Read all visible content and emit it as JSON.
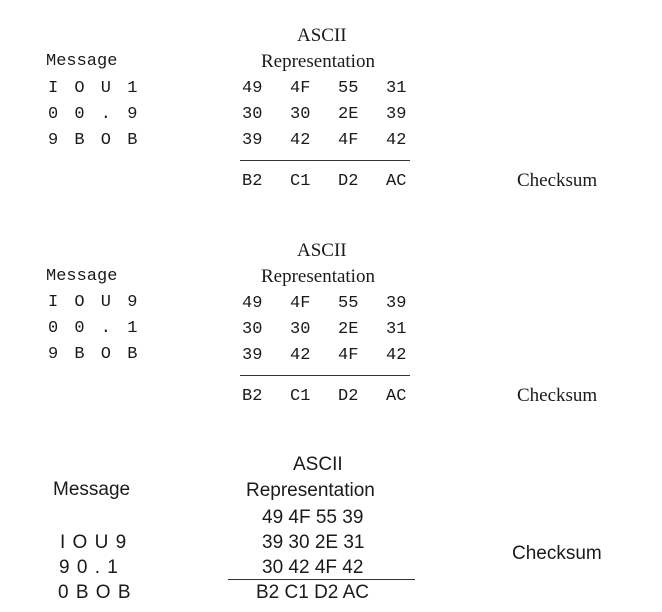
{
  "blocks": [
    {
      "header_ascii": "ASCII",
      "header_repr": "Representation",
      "message_label": "Message",
      "message_lines": [
        "I O U 1",
        "0 0 . 9",
        "9 B O B"
      ],
      "hex_rows": [
        [
          "49",
          "4F",
          "55",
          "31"
        ],
        [
          "30",
          "30",
          "2E",
          "39"
        ],
        [
          "39",
          "42",
          "4F",
          "42"
        ]
      ],
      "checksum_values": [
        "B2",
        "C1",
        "D2",
        "AC"
      ],
      "checksum_label": "Checksum"
    },
    {
      "header_ascii": "ASCII",
      "header_repr": "Representation",
      "message_label": "Message",
      "message_lines": [
        "I O U 9",
        "0 0 . 1",
        "9 B O B"
      ],
      "hex_rows": [
        [
          "49",
          "4F",
          "55",
          "39"
        ],
        [
          "30",
          "30",
          "2E",
          "31"
        ],
        [
          "39",
          "42",
          "4F",
          "42"
        ]
      ],
      "checksum_values": [
        "B2",
        "C1",
        "D2",
        "AC"
      ],
      "checksum_label": "Checksum"
    },
    {
      "header_ascii": "ASCII",
      "header_repr": "Representation",
      "message_label": "Message",
      "message_lines": [
        "I O U 9",
        "9 0 . 1",
        "0 B O B"
      ],
      "hex_rows": [
        "49 4F 55 39",
        "39 30 2E 31",
        "30 42 4F 42"
      ],
      "checksum_values": "B2 C1 D2 AC",
      "checksum_label": "Checksum"
    }
  ]
}
